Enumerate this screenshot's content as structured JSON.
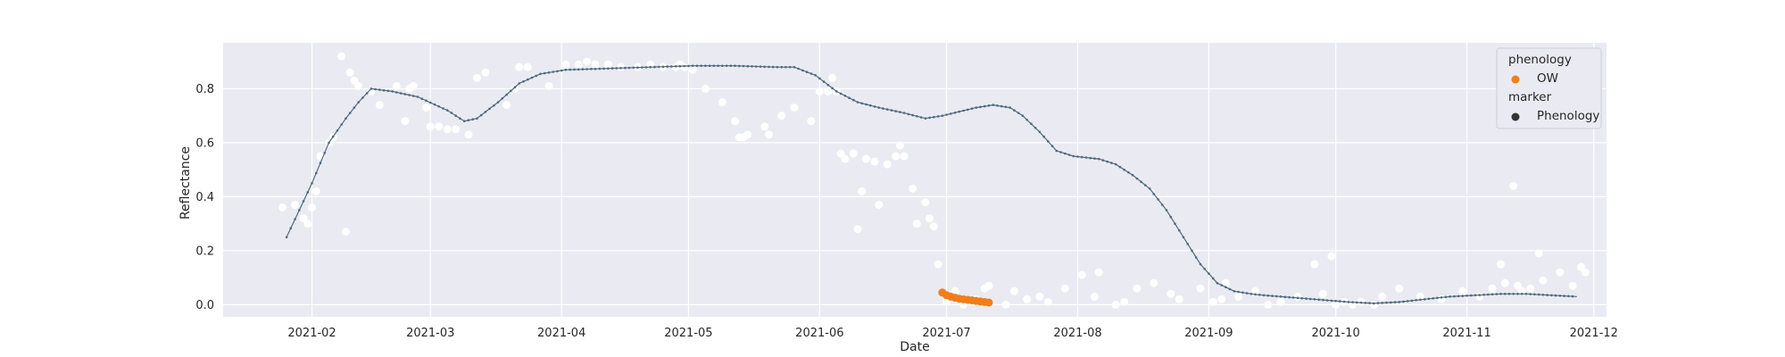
{
  "chart_data": {
    "type": "scatter",
    "title": "",
    "xlabel": "Date",
    "ylabel": "Reflectance",
    "xlim": [
      "2021-01-11",
      "2021-12-04"
    ],
    "ylim": [
      -0.045,
      0.97
    ],
    "x_ticks": [
      "2021-02",
      "2021-03",
      "2021-04",
      "2021-05",
      "2021-06",
      "2021-07",
      "2021-08",
      "2021-09",
      "2021-10",
      "2021-11",
      "2021-12"
    ],
    "y_ticks": [
      "0.0",
      "0.2",
      "0.4",
      "0.6",
      "0.8"
    ],
    "y_tick_values": [
      0.0,
      0.2,
      0.4,
      0.6,
      0.8
    ],
    "grid": true,
    "background": "#eaeaf2",
    "legend": {
      "placement": "top-right",
      "title1": "phenology",
      "entry1": "OW",
      "entry1_color": "#f07e1a",
      "title2": "marker",
      "entry2": "Phenology",
      "entry2_color": "#333333"
    },
    "curve_color": "#4f6a7d",
    "observations": [
      [
        "2021-01-25",
        0.36
      ],
      [
        "2021-01-28",
        0.37
      ],
      [
        "2021-01-30",
        0.32
      ],
      [
        "2021-01-31",
        0.3
      ],
      [
        "2021-02-01",
        0.36
      ],
      [
        "2021-02-02",
        0.42
      ],
      [
        "2021-02-03",
        0.55
      ],
      [
        "2021-02-05",
        0.6
      ],
      [
        "2021-02-06",
        0.62
      ],
      [
        "2021-02-08",
        0.92
      ],
      [
        "2021-02-09",
        0.27
      ],
      [
        "2021-02-10",
        0.86
      ],
      [
        "2021-02-11",
        0.83
      ],
      [
        "2021-02-12",
        0.81
      ],
      [
        "2021-02-15",
        0.79
      ],
      [
        "2021-02-17",
        0.74
      ],
      [
        "2021-02-21",
        0.81
      ],
      [
        "2021-02-23",
        0.68
      ],
      [
        "2021-02-24",
        0.8
      ],
      [
        "2021-02-25",
        0.81
      ],
      [
        "2021-02-28",
        0.73
      ],
      [
        "2021-03-01",
        0.66
      ],
      [
        "2021-03-03",
        0.66
      ],
      [
        "2021-03-05",
        0.65
      ],
      [
        "2021-03-07",
        0.65
      ],
      [
        "2021-03-10",
        0.63
      ],
      [
        "2021-03-12",
        0.84
      ],
      [
        "2021-03-14",
        0.86
      ],
      [
        "2021-03-19",
        0.74
      ],
      [
        "2021-03-21",
        0.8
      ],
      [
        "2021-03-22",
        0.88
      ],
      [
        "2021-03-24",
        0.88
      ],
      [
        "2021-03-29",
        0.81
      ],
      [
        "2021-04-02",
        0.89
      ],
      [
        "2021-04-05",
        0.89
      ],
      [
        "2021-04-07",
        0.9
      ],
      [
        "2021-04-09",
        0.89
      ],
      [
        "2021-04-12",
        0.89
      ],
      [
        "2021-04-15",
        0.88
      ],
      [
        "2021-04-19",
        0.88
      ],
      [
        "2021-04-22",
        0.89
      ],
      [
        "2021-04-25",
        0.88
      ],
      [
        "2021-04-28",
        0.88
      ],
      [
        "2021-04-29",
        0.89
      ],
      [
        "2021-04-30",
        0.88
      ],
      [
        "2021-05-02",
        0.87
      ],
      [
        "2021-05-05",
        0.8
      ],
      [
        "2021-05-09",
        0.75
      ],
      [
        "2021-05-12",
        0.68
      ],
      [
        "2021-05-13",
        0.62
      ],
      [
        "2021-05-14",
        0.62
      ],
      [
        "2021-05-15",
        0.63
      ],
      [
        "2021-05-19",
        0.66
      ],
      [
        "2021-05-20",
        0.63
      ],
      [
        "2021-05-23",
        0.7
      ],
      [
        "2021-05-26",
        0.73
      ],
      [
        "2021-05-30",
        0.68
      ],
      [
        "2021-06-01",
        0.79
      ],
      [
        "2021-06-03",
        0.79
      ],
      [
        "2021-06-04",
        0.84
      ],
      [
        "2021-06-05",
        0.79
      ],
      [
        "2021-06-06",
        0.56
      ],
      [
        "2021-06-07",
        0.54
      ],
      [
        "2021-06-09",
        0.56
      ],
      [
        "2021-06-10",
        0.28
      ],
      [
        "2021-06-11",
        0.42
      ],
      [
        "2021-06-12",
        0.54
      ],
      [
        "2021-06-14",
        0.53
      ],
      [
        "2021-06-15",
        0.37
      ],
      [
        "2021-06-17",
        0.52
      ],
      [
        "2021-06-19",
        0.55
      ],
      [
        "2021-06-20",
        0.59
      ],
      [
        "2021-06-21",
        0.55
      ],
      [
        "2021-06-23",
        0.43
      ],
      [
        "2021-06-24",
        0.3
      ],
      [
        "2021-06-26",
        0.38
      ],
      [
        "2021-06-27",
        0.32
      ],
      [
        "2021-06-28",
        0.29
      ],
      [
        "2021-06-29",
        0.15
      ],
      [
        "2021-07-01",
        0.01
      ],
      [
        "2021-07-03",
        0.05
      ],
      [
        "2021-07-05",
        0.0
      ],
      [
        "2021-07-08",
        0.02
      ],
      [
        "2021-07-10",
        0.06
      ],
      [
        "2021-07-11",
        0.07
      ],
      [
        "2021-07-15",
        0.0
      ],
      [
        "2021-07-17",
        0.05
      ],
      [
        "2021-07-20",
        0.02
      ],
      [
        "2021-07-23",
        0.03
      ],
      [
        "2021-07-25",
        0.01
      ],
      [
        "2021-07-29",
        0.06
      ],
      [
        "2021-08-02",
        0.11
      ],
      [
        "2021-08-05",
        0.03
      ],
      [
        "2021-08-06",
        0.12
      ],
      [
        "2021-08-10",
        0.0
      ],
      [
        "2021-08-12",
        0.01
      ],
      [
        "2021-08-15",
        0.06
      ],
      [
        "2021-08-19",
        0.08
      ],
      [
        "2021-08-23",
        0.04
      ],
      [
        "2021-08-25",
        0.02
      ],
      [
        "2021-08-30",
        0.06
      ],
      [
        "2021-09-02",
        0.01
      ],
      [
        "2021-09-04",
        0.02
      ],
      [
        "2021-09-05",
        0.08
      ],
      [
        "2021-09-08",
        0.03
      ],
      [
        "2021-09-12",
        0.05
      ],
      [
        "2021-09-15",
        0.0
      ],
      [
        "2021-09-18",
        0.01
      ],
      [
        "2021-09-22",
        0.03
      ],
      [
        "2021-09-26",
        0.15
      ],
      [
        "2021-09-28",
        0.04
      ],
      [
        "2021-09-30",
        0.18
      ],
      [
        "2021-10-01",
        0.0
      ],
      [
        "2021-10-03",
        0.01
      ],
      [
        "2021-10-05",
        0.0
      ],
      [
        "2021-10-07",
        0.01
      ],
      [
        "2021-10-10",
        0.0
      ],
      [
        "2021-10-12",
        0.03
      ],
      [
        "2021-10-16",
        0.06
      ],
      [
        "2021-10-21",
        0.03
      ],
      [
        "2021-10-26",
        0.02
      ],
      [
        "2021-10-31",
        0.05
      ],
      [
        "2021-11-04",
        0.03
      ],
      [
        "2021-11-07",
        0.06
      ],
      [
        "2021-11-09",
        0.15
      ],
      [
        "2021-11-10",
        0.08
      ],
      [
        "2021-11-12",
        0.44
      ],
      [
        "2021-11-13",
        0.07
      ],
      [
        "2021-11-14",
        0.05
      ],
      [
        "2021-11-16",
        0.06
      ],
      [
        "2021-11-18",
        0.19
      ],
      [
        "2021-11-19",
        0.09
      ],
      [
        "2021-11-23",
        0.12
      ],
      [
        "2021-11-26",
        0.07
      ],
      [
        "2021-11-28",
        0.14
      ],
      [
        "2021-11-29",
        0.12
      ]
    ],
    "curve": [
      [
        "2021-01-26",
        0.25
      ],
      [
        "2021-02-01",
        0.45
      ],
      [
        "2021-02-05",
        0.6
      ],
      [
        "2021-02-09",
        0.69
      ],
      [
        "2021-02-12",
        0.75
      ],
      [
        "2021-02-15",
        0.8
      ],
      [
        "2021-02-20",
        0.79
      ],
      [
        "2021-02-26",
        0.77
      ],
      [
        "2021-03-05",
        0.72
      ],
      [
        "2021-03-09",
        0.68
      ],
      [
        "2021-03-12",
        0.69
      ],
      [
        "2021-03-17",
        0.75
      ],
      [
        "2021-03-22",
        0.82
      ],
      [
        "2021-03-27",
        0.855
      ],
      [
        "2021-04-02",
        0.87
      ],
      [
        "2021-04-12",
        0.875
      ],
      [
        "2021-04-22",
        0.88
      ],
      [
        "2021-05-02",
        0.885
      ],
      [
        "2021-05-12",
        0.885
      ],
      [
        "2021-05-22",
        0.88
      ],
      [
        "2021-05-26",
        0.88
      ],
      [
        "2021-05-31",
        0.85
      ],
      [
        "2021-06-05",
        0.79
      ],
      [
        "2021-06-10",
        0.75
      ],
      [
        "2021-06-15",
        0.73
      ],
      [
        "2021-06-21",
        0.71
      ],
      [
        "2021-06-26",
        0.69
      ],
      [
        "2021-06-30",
        0.7
      ],
      [
        "2021-07-04",
        0.715
      ],
      [
        "2021-07-08",
        0.73
      ],
      [
        "2021-07-12",
        0.74
      ],
      [
        "2021-07-16",
        0.73
      ],
      [
        "2021-07-19",
        0.7
      ],
      [
        "2021-07-23",
        0.64
      ],
      [
        "2021-07-27",
        0.57
      ],
      [
        "2021-07-31",
        0.55
      ],
      [
        "2021-08-06",
        0.54
      ],
      [
        "2021-08-10",
        0.52
      ],
      [
        "2021-08-14",
        0.48
      ],
      [
        "2021-08-18",
        0.43
      ],
      [
        "2021-08-22",
        0.35
      ],
      [
        "2021-08-26",
        0.25
      ],
      [
        "2021-08-30",
        0.15
      ],
      [
        "2021-09-03",
        0.08
      ],
      [
        "2021-09-07",
        0.05
      ],
      [
        "2021-09-11",
        0.04
      ],
      [
        "2021-09-14",
        0.035
      ],
      [
        "2021-09-18",
        0.03
      ],
      [
        "2021-09-22",
        0.025
      ],
      [
        "2021-09-26",
        0.02
      ],
      [
        "2021-09-30",
        0.015
      ],
      [
        "2021-10-04",
        0.01
      ],
      [
        "2021-10-10",
        0.005
      ],
      [
        "2021-10-16",
        0.01
      ],
      [
        "2021-10-22",
        0.02
      ],
      [
        "2021-10-28",
        0.03
      ],
      [
        "2021-11-03",
        0.035
      ],
      [
        "2021-11-09",
        0.04
      ],
      [
        "2021-11-15",
        0.04
      ],
      [
        "2021-11-21",
        0.035
      ],
      [
        "2021-11-27",
        0.03
      ]
    ],
    "ow_points": [
      [
        "2021-06-30",
        0.045
      ],
      [
        "2021-07-01",
        0.035
      ],
      [
        "2021-07-02",
        0.03
      ],
      [
        "2021-07-03",
        0.026
      ],
      [
        "2021-07-04",
        0.022
      ],
      [
        "2021-07-05",
        0.02
      ],
      [
        "2021-07-06",
        0.018
      ],
      [
        "2021-07-07",
        0.016
      ],
      [
        "2021-07-08",
        0.014
      ],
      [
        "2021-07-09",
        0.012
      ],
      [
        "2021-07-10",
        0.01
      ],
      [
        "2021-07-11",
        0.008
      ]
    ]
  }
}
